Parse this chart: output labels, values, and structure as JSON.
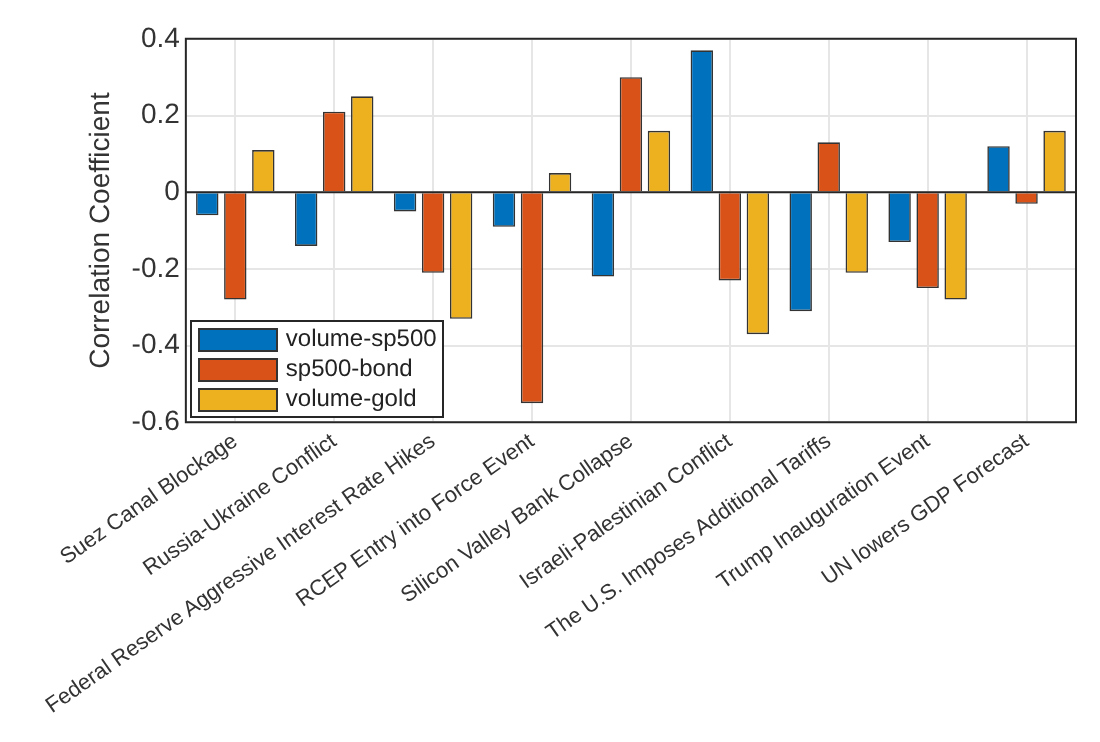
{
  "chart_data": {
    "type": "bar",
    "ylabel": "Correlation Coefficient",
    "categories": [
      "Suez Canal Blockage",
      "Russia-Ukraine Conflict",
      "Federal Reserve Aggressive Interest Rate Hikes",
      "RCEP Entry into Force Event",
      "Silicon Valley Bank Collapse",
      "Israeli-Palestinian Conflict",
      "The U.S. Imposes Additional Tariffs",
      "Trump Inauguration Event",
      "UN lowers GDP Forecast"
    ],
    "series": [
      {
        "name": "volume-sp500",
        "color": "#0072bd",
        "values": [
          -0.06,
          -0.14,
          -0.05,
          -0.09,
          -0.22,
          0.37,
          -0.31,
          -0.13,
          0.12
        ]
      },
      {
        "name": "sp500-bond",
        "color": "#d95319",
        "values": [
          -0.28,
          0.21,
          -0.21,
          -0.55,
          0.3,
          -0.23,
          0.13,
          -0.25,
          -0.03
        ]
      },
      {
        "name": "volume-gold",
        "color": "#edb120",
        "values": [
          0.11,
          0.25,
          -0.33,
          0.05,
          0.16,
          -0.37,
          -0.21,
          -0.28,
          0.16
        ]
      }
    ],
    "ylim": [
      -0.6,
      0.4
    ],
    "yticks": [
      -0.6,
      -0.4,
      -0.2,
      0,
      0.2,
      0.4
    ],
    "grid": true,
    "legend": "bottom left"
  }
}
